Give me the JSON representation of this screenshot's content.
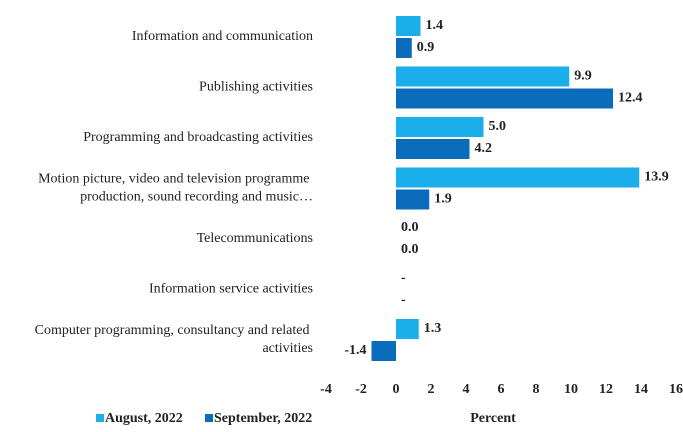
{
  "chart_data": {
    "type": "hbar",
    "categories": [
      "Information and communication",
      "Publishing activities",
      "Programming and broadcasting activities",
      "Motion picture, video and television programme production, sound recording and music…",
      "Telecommunications",
      "Information service activities",
      "Computer programming, consultancy and related activities"
    ],
    "series": [
      {
        "name": "August, 2022",
        "color": "#1aaeea",
        "values": [
          1.4,
          9.9,
          5.0,
          13.9,
          0.0,
          null,
          1.3
        ],
        "value_labels": [
          "1.4",
          "9.9",
          "5.0",
          "13.9",
          "0.0",
          "-",
          "1.3"
        ]
      },
      {
        "name": "September, 2022",
        "color": "#0b6cbc",
        "values": [
          0.9,
          12.4,
          4.2,
          1.9,
          0.0,
          null,
          -1.4
        ],
        "value_labels": [
          "0.9",
          "12.4",
          "4.2",
          "1.9",
          "0.0",
          "-",
          "-1.4"
        ]
      }
    ],
    "xlabel": "Percent",
    "xlim": [
      -4,
      16
    ],
    "xticks": [
      -4,
      -2,
      0,
      2,
      4,
      6,
      8,
      10,
      12,
      14,
      16
    ],
    "grid": false,
    "legend": "bottom-left"
  }
}
